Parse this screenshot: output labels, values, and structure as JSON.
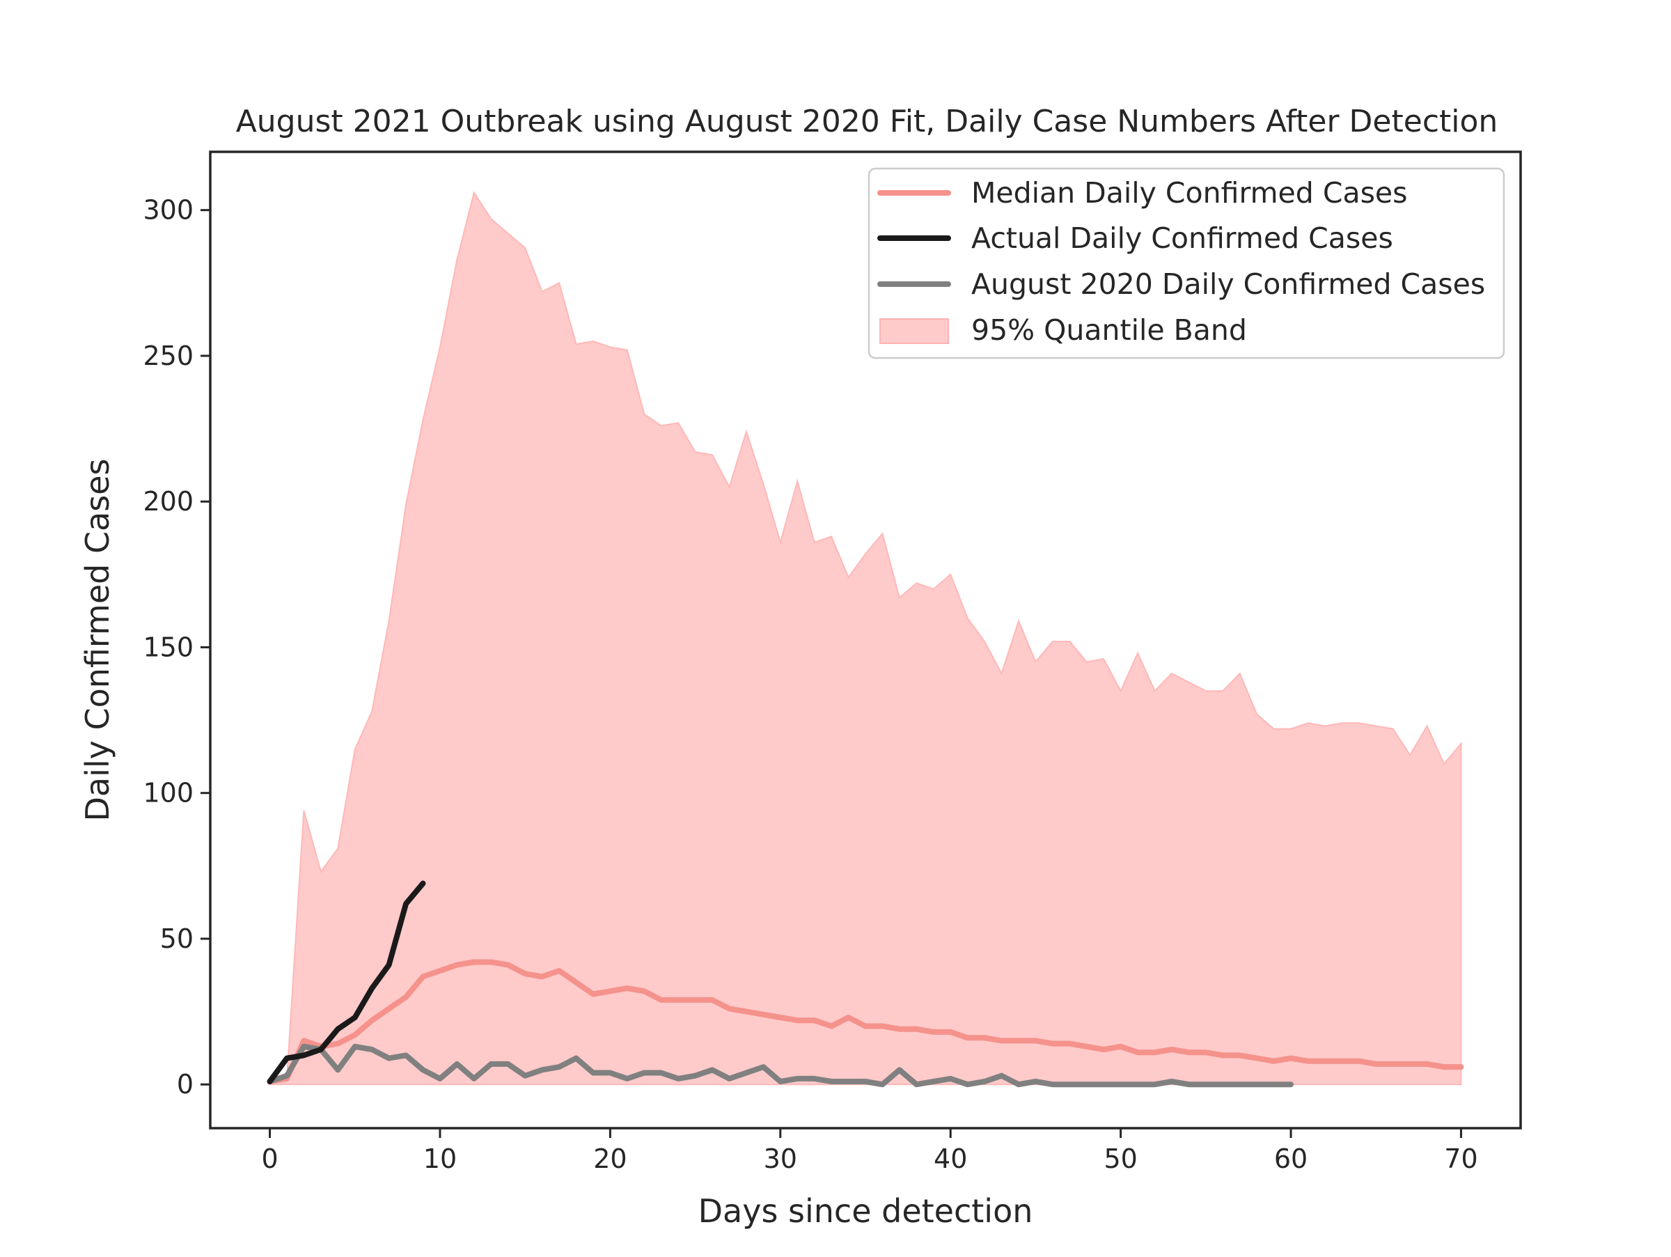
{
  "chart_data": {
    "type": "line",
    "title": "August 2021 Outbreak using August 2020 Fit, Daily Case Numbers After Detection",
    "xlabel": "Days since detection",
    "ylabel": "Daily Confirmed Cases",
    "xlim": [
      -3.5,
      73.5
    ],
    "ylim": [
      -15,
      320
    ],
    "xticks": [
      0,
      10,
      20,
      30,
      40,
      50,
      60,
      70
    ],
    "yticks": [
      0,
      50,
      100,
      150,
      200,
      250,
      300
    ],
    "grid": false,
    "legend_position": "top-right",
    "series": [
      {
        "name": "Median Daily Confirmed Cases",
        "kind": "line",
        "color": "#f4928b",
        "x": [
          0,
          1,
          2,
          3,
          4,
          5,
          6,
          7,
          8,
          9,
          10,
          11,
          12,
          13,
          14,
          15,
          16,
          17,
          18,
          19,
          20,
          21,
          22,
          23,
          24,
          25,
          26,
          27,
          28,
          29,
          30,
          31,
          32,
          33,
          34,
          35,
          36,
          37,
          38,
          39,
          40,
          41,
          42,
          43,
          44,
          45,
          46,
          47,
          48,
          49,
          50,
          51,
          52,
          53,
          54,
          55,
          56,
          57,
          58,
          59,
          60,
          61,
          62,
          63,
          64,
          65,
          66,
          67,
          68,
          69,
          70
        ],
        "y": [
          1,
          2,
          15,
          13,
          14,
          17,
          22,
          26,
          30,
          37,
          39,
          41,
          42,
          42,
          41,
          38,
          37,
          39,
          35,
          31,
          32,
          33,
          32,
          29,
          29,
          29,
          29,
          26,
          25,
          24,
          23,
          22,
          22,
          20,
          23,
          20,
          20,
          19,
          19,
          18,
          18,
          16,
          16,
          15,
          15,
          15,
          14,
          14,
          13,
          12,
          13,
          11,
          11,
          12,
          11,
          11,
          10,
          10,
          9,
          8,
          9,
          8,
          8,
          8,
          8,
          7,
          7,
          7,
          7,
          6,
          6
        ]
      },
      {
        "name": "Actual Daily Confirmed Cases",
        "kind": "line",
        "color": "#1a1a1a",
        "x": [
          0,
          1,
          2,
          3,
          4,
          5,
          6,
          7,
          8,
          9
        ],
        "y": [
          1,
          9,
          10,
          12,
          19,
          23,
          33,
          41,
          62,
          69
        ]
      },
      {
        "name": "August 2020 Daily Confirmed Cases",
        "kind": "line",
        "color": "#808080",
        "x": [
          0,
          1,
          2,
          3,
          4,
          5,
          6,
          7,
          8,
          9,
          10,
          11,
          12,
          13,
          14,
          15,
          16,
          17,
          18,
          19,
          20,
          21,
          22,
          23,
          24,
          25,
          26,
          27,
          28,
          29,
          30,
          31,
          32,
          33,
          34,
          35,
          36,
          37,
          38,
          39,
          40,
          41,
          42,
          43,
          44,
          45,
          46,
          47,
          48,
          49,
          50,
          51,
          52,
          53,
          54,
          55,
          56,
          57,
          58,
          59,
          60
        ],
        "y": [
          1,
          3,
          13,
          12,
          5,
          13,
          12,
          9,
          10,
          5,
          2,
          7,
          2,
          7,
          7,
          3,
          5,
          6,
          9,
          4,
          4,
          2,
          4,
          4,
          2,
          3,
          5,
          2,
          4,
          6,
          1,
          2,
          2,
          1,
          1,
          1,
          0,
          5,
          0,
          1,
          2,
          0,
          1,
          3,
          0,
          1,
          0,
          0,
          0,
          0,
          0,
          0,
          0,
          1,
          0,
          0,
          0,
          0,
          0,
          0,
          0
        ]
      },
      {
        "name": "95% Quantile Band",
        "kind": "band",
        "color": "#ffcaca",
        "x": [
          0,
          1,
          2,
          3,
          4,
          5,
          6,
          7,
          8,
          9,
          10,
          11,
          12,
          13,
          14,
          15,
          16,
          17,
          18,
          19,
          20,
          21,
          22,
          23,
          24,
          25,
          26,
          27,
          28,
          29,
          30,
          31,
          32,
          33,
          34,
          35,
          36,
          37,
          38,
          39,
          40,
          41,
          42,
          43,
          44,
          45,
          46,
          47,
          48,
          49,
          50,
          51,
          52,
          53,
          54,
          55,
          56,
          57,
          58,
          59,
          60,
          61,
          62,
          63,
          64,
          65,
          66,
          67,
          68,
          69,
          70
        ],
        "lower": [
          0,
          0,
          0,
          0,
          0,
          0,
          0,
          0,
          0,
          0,
          0,
          0,
          0,
          0,
          0,
          0,
          0,
          0,
          0,
          0,
          0,
          0,
          0,
          0,
          0,
          0,
          0,
          0,
          0,
          0,
          0,
          0,
          0,
          0,
          0,
          0,
          0,
          0,
          0,
          0,
          0,
          0,
          0,
          0,
          0,
          0,
          0,
          0,
          0,
          0,
          0,
          0,
          0,
          0,
          0,
          0,
          0,
          0,
          0,
          0,
          0,
          0,
          0,
          0,
          0,
          0,
          0,
          0,
          0,
          0,
          0
        ],
        "upper": [
          1,
          2,
          94,
          73,
          81,
          115,
          128,
          159,
          199,
          228,
          253,
          283,
          306,
          297,
          292,
          287,
          272,
          275,
          254,
          255,
          253,
          252,
          230,
          226,
          227,
          217,
          216,
          205,
          224,
          206,
          186,
          207,
          186,
          188,
          174,
          182,
          189,
          167,
          172,
          170,
          175,
          160,
          152,
          141,
          159,
          145,
          152,
          152,
          145,
          146,
          135,
          148,
          135,
          141,
          138,
          135,
          135,
          141,
          127,
          122,
          122,
          124,
          123,
          124,
          124,
          123,
          122,
          113,
          123,
          110,
          117
        ]
      }
    ],
    "legend": [
      "Median Daily Confirmed Cases",
      "Actual Daily Confirmed Cases",
      "August 2020 Daily Confirmed Cases",
      "95% Quantile Band"
    ]
  }
}
